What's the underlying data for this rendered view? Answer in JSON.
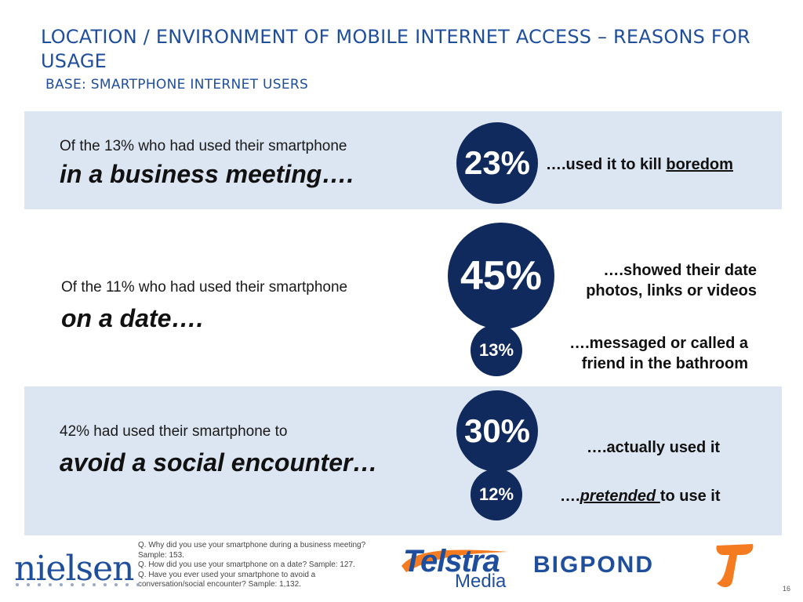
{
  "header": {
    "title": "LOCATION / ENVIRONMENT OF MOBILE INTERNET ACCESS – REASONS FOR USAGE",
    "subtitle": "BASE: SMARTPHONE INTERNET USERS"
  },
  "sections": [
    {
      "lead": "Of the 13% who had used their smartphone",
      "highlight": "in a business meeting….",
      "stats": [
        {
          "value": "23%",
          "text_before": "….used it to kill ",
          "text_emph": "boredom",
          "text_after": ""
        }
      ]
    },
    {
      "lead": "Of the 11% who had used their smartphone",
      "highlight": "on a date….",
      "stats": [
        {
          "value": "45%",
          "line1": "….showed their date",
          "line2": "photos, links or videos"
        },
        {
          "value": "13%",
          "line1": "….messaged or called a",
          "line2": "friend in the bathroom"
        }
      ]
    },
    {
      "lead": "42% had used their smartphone to",
      "highlight": "avoid a social encounter…",
      "stats": [
        {
          "value": "30%",
          "text": "….actually used it"
        },
        {
          "value": "12%",
          "text_before": "….",
          "text_emph": "pretended ",
          "text_after": "to use it"
        }
      ]
    }
  ],
  "footnote": [
    "Q. Why did you use your smartphone during a business meeting?",
    "Sample: 153.",
    "Q. How did you use your smartphone on a date? Sample: 127.",
    "Q. Have you ever used your smartphone to avoid a",
    "conversation/social encounter? Sample: 1,132."
  ],
  "logos": {
    "nielsen": "nielsen",
    "telstra": "Telstra",
    "telstra_media": "Media",
    "bigpond": "BIGPOND"
  },
  "page_number": "16",
  "colors": {
    "title": "#1f4e9c",
    "band": "#dce5f2",
    "circle": "#112a5e",
    "telstra_orange": "#f47b20"
  }
}
